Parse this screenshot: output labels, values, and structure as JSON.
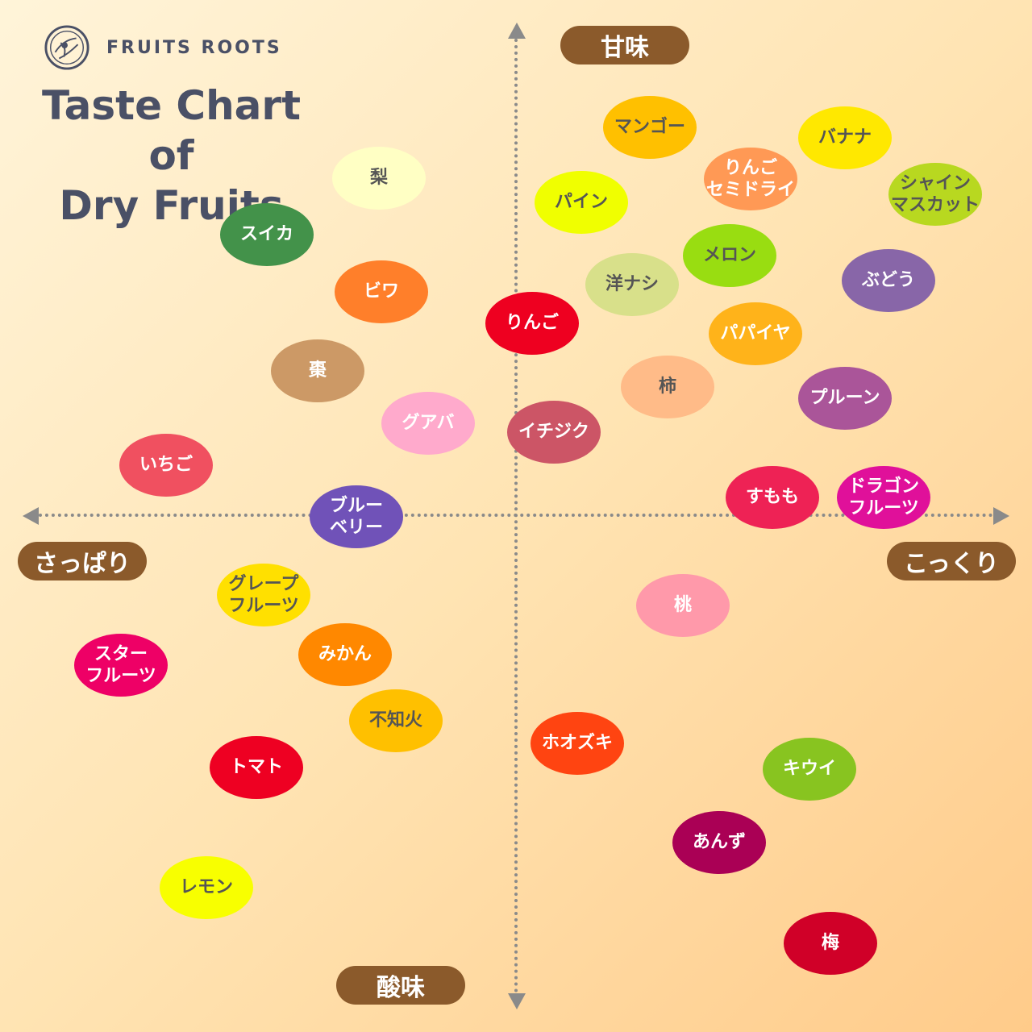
{
  "brand": {
    "name": "FRUITS ROOTS"
  },
  "title": {
    "line1": "Taste Chart of",
    "line2": "Dry Fruits"
  },
  "axes": {
    "top": "甘味",
    "bottom": "酸味",
    "left": "さっぱり",
    "right": "こっくり",
    "axis_color": "#8a8a8a",
    "label_color": "#8b5a2b"
  },
  "fruits": [
    {
      "label": "梨",
      "color": "#ffffc4",
      "dark_text": true
    },
    {
      "label": "スイカ",
      "color": "#43924a"
    },
    {
      "label": "ビワ",
      "color": "#ff7f2a"
    },
    {
      "label": "棗",
      "color": "#cc9966"
    },
    {
      "label": "グアバ",
      "color": "#ffaacc"
    },
    {
      "label": "いちご",
      "color": "#f05060"
    },
    {
      "label": "ブルー\nベリー",
      "color": "#7052b8"
    },
    {
      "label": "りんご",
      "color": "#ee0020"
    },
    {
      "label": "マンゴー",
      "color": "#ffc000",
      "dark_text": true
    },
    {
      "label": "バナナ",
      "color": "#ffe800",
      "dark_text": true
    },
    {
      "label": "りんご\nセミドライ",
      "color": "#ff9955"
    },
    {
      "label": "シャイン\nマスカット",
      "color": "#b8d820",
      "dark_text": true
    },
    {
      "label": "パイン",
      "color": "#f0ff00",
      "dark_text": true
    },
    {
      "label": "メロン",
      "color": "#99dd11",
      "dark_text": true
    },
    {
      "label": "洋ナシ",
      "color": "#d8e08a",
      "dark_text": true
    },
    {
      "label": "ぶどう",
      "color": "#8866a8"
    },
    {
      "label": "パパイヤ",
      "color": "#ffb31a"
    },
    {
      "label": "柿",
      "color": "#ffbb88",
      "dark_text": true
    },
    {
      "label": "プルーン",
      "color": "#aa5599"
    },
    {
      "label": "イチジク",
      "color": "#cc5566"
    },
    {
      "label": "すもも",
      "color": "#ee2255"
    },
    {
      "label": "ドラゴン\nフルーツ",
      "color": "#e0109a"
    },
    {
      "label": "グレープ\nフルーツ",
      "color": "#ffe000",
      "dark_text": true
    },
    {
      "label": "スター\nフルーツ",
      "color": "#ee0066"
    },
    {
      "label": "みかん",
      "color": "#ff8800"
    },
    {
      "label": "不知火",
      "color": "#ffc000",
      "dark_text": true
    },
    {
      "label": "トマト",
      "color": "#ee0022"
    },
    {
      "label": "レモン",
      "color": "#f8ff00",
      "dark_text": true
    },
    {
      "label": "桃",
      "color": "#ff99aa"
    },
    {
      "label": "ホオズキ",
      "color": "#ff4411"
    },
    {
      "label": "キウイ",
      "color": "#88c420"
    },
    {
      "label": "あんず",
      "color": "#aa0055"
    },
    {
      "label": "梅",
      "color": "#d00028"
    }
  ]
}
